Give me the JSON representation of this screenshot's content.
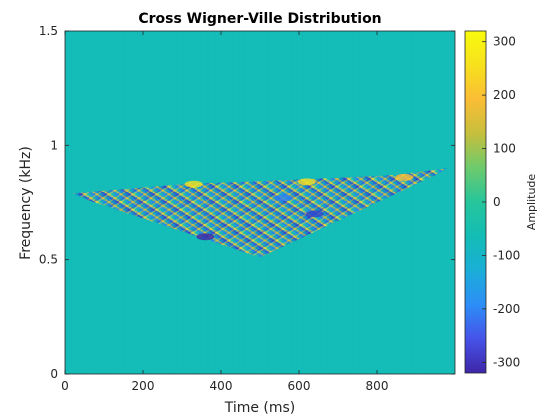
{
  "chart_data": {
    "type": "heatmap",
    "title": "Cross Wigner-Ville Distribution",
    "xlabel": "Time (ms)",
    "ylabel": "Frequency (kHz)",
    "xlim": [
      0,
      1000
    ],
    "ylim": [
      0,
      1.5
    ],
    "x_ticks": [
      0,
      200,
      400,
      600,
      800
    ],
    "y_ticks": [
      0,
      0.5,
      1,
      1.5
    ],
    "y_tick_labels": [
      "0",
      "0.5",
      "1",
      "1.5"
    ],
    "colorbar": {
      "label": "Amplitude",
      "range": [
        -320,
        320
      ],
      "ticks": [
        -300,
        -200,
        -100,
        0,
        100,
        200,
        300
      ],
      "colormap": "parula",
      "colors": [
        "#3e26a8",
        "#4653e9",
        "#2d8ef7",
        "#1aaed7",
        "#13bdb5",
        "#26c59b",
        "#6dca6c",
        "#c6bf3d",
        "#fbbd35",
        "#f7e11d",
        "#f9fb0e"
      ]
    },
    "background_value": 0,
    "interference_region": {
      "description": "oscillating cross-term pattern",
      "top_edge": [
        [
          20,
          0.79
        ],
        [
          300,
          0.83
        ],
        [
          600,
          0.85
        ],
        [
          850,
          0.87
        ],
        [
          980,
          0.9
        ]
      ],
      "apex": [
        500,
        0.51
      ],
      "bottom_left": [
        60,
        0.76
      ],
      "bottom_right": [
        950,
        0.87
      ]
    }
  }
}
